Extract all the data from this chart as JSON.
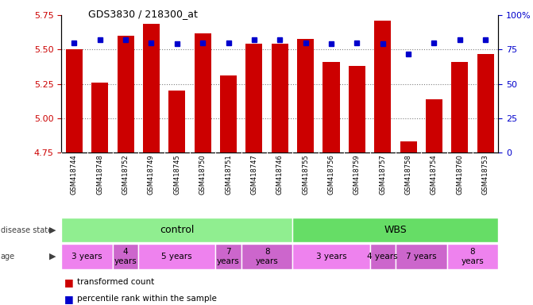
{
  "title": "GDS3830 / 218300_at",
  "samples": [
    "GSM418744",
    "GSM418748",
    "GSM418752",
    "GSM418749",
    "GSM418745",
    "GSM418750",
    "GSM418751",
    "GSM418747",
    "GSM418746",
    "GSM418755",
    "GSM418756",
    "GSM418759",
    "GSM418757",
    "GSM418758",
    "GSM418754",
    "GSM418760",
    "GSM418753"
  ],
  "bar_values": [
    5.5,
    5.26,
    5.6,
    5.69,
    5.2,
    5.62,
    5.31,
    5.54,
    5.54,
    5.58,
    5.41,
    5.38,
    5.71,
    4.83,
    5.14,
    5.41,
    5.47
  ],
  "dot_values": [
    80,
    82,
    82,
    80,
    79,
    80,
    80,
    82,
    82,
    80,
    79,
    80,
    79,
    72,
    80,
    82,
    82
  ],
  "bar_color": "#cc0000",
  "dot_color": "#0000cc",
  "ymin": 4.75,
  "ymax": 5.75,
  "yticks": [
    4.75,
    5.0,
    5.25,
    5.5,
    5.75
  ],
  "y2ticks": [
    0,
    25,
    50,
    75,
    100
  ],
  "y2labels": [
    "0",
    "25",
    "50",
    "75",
    "100%"
  ],
  "grid_values": [
    5.0,
    5.25,
    5.5
  ],
  "disease_state_groups": [
    {
      "label": "control",
      "start": 0,
      "end": 9,
      "color": "#90ee90"
    },
    {
      "label": "WBS",
      "start": 9,
      "end": 17,
      "color": "#66dd66"
    }
  ],
  "age_groups": [
    {
      "label": "3 years",
      "start": 0,
      "end": 2,
      "color": "#ee82ee"
    },
    {
      "label": "4\nyears",
      "start": 2,
      "end": 3,
      "color": "#cc66cc"
    },
    {
      "label": "5 years",
      "start": 3,
      "end": 6,
      "color": "#ee82ee"
    },
    {
      "label": "7\nyears",
      "start": 6,
      "end": 7,
      "color": "#cc66cc"
    },
    {
      "label": "8\nyears",
      "start": 7,
      "end": 9,
      "color": "#cc66cc"
    },
    {
      "label": "3 years",
      "start": 9,
      "end": 12,
      "color": "#ee82ee"
    },
    {
      "label": "4 years",
      "start": 12,
      "end": 13,
      "color": "#cc66cc"
    },
    {
      "label": "7 years",
      "start": 13,
      "end": 15,
      "color": "#cc66cc"
    },
    {
      "label": "8\nyears",
      "start": 15,
      "end": 17,
      "color": "#ee82ee"
    }
  ],
  "ylabel_color": "#cc0000",
  "y2label_color": "#0000cc",
  "bg_color": "#ffffff",
  "sample_bg_color": "#d8d8d8",
  "left_label_color": "#404040"
}
